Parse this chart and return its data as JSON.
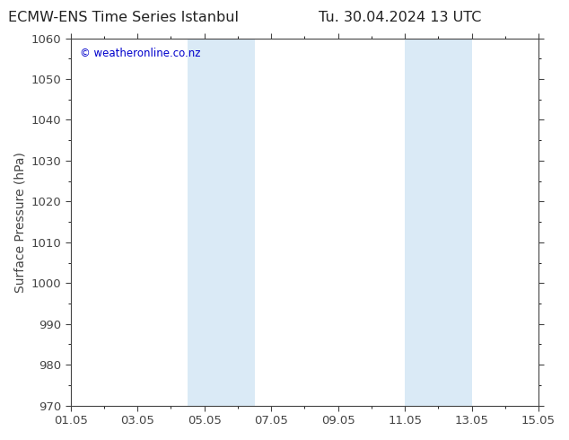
{
  "title_left": "ECMW-ENS Time Series Istanbul",
  "title_right": "Tu. 30.04.2024 13 UTC",
  "ylabel": "Surface Pressure (hPa)",
  "xlabel_ticks": [
    "01.05",
    "03.05",
    "05.05",
    "07.05",
    "09.05",
    "11.05",
    "13.05",
    "15.05"
  ],
  "xtick_positions": [
    0,
    2,
    4,
    6,
    8,
    10,
    12,
    14
  ],
  "xlim": [
    0,
    14
  ],
  "ylim": [
    970,
    1060
  ],
  "yticks": [
    970,
    980,
    990,
    1000,
    1010,
    1020,
    1030,
    1040,
    1050,
    1060
  ],
  "shaded_bands": [
    {
      "x_start": 3.5,
      "x_end": 5.5
    },
    {
      "x_start": 10.0,
      "x_end": 12.0
    }
  ],
  "shaded_color": "#daeaf6",
  "background_color": "#ffffff",
  "plot_bg_color": "#ffffff",
  "watermark_text": "© weatheronline.co.nz",
  "watermark_color": "#0000cc",
  "title_color": "#222222",
  "axis_color": "#444444",
  "tick_color": "#444444",
  "title_fontsize": 11.5,
  "ylabel_fontsize": 10,
  "tick_fontsize": 9.5,
  "watermark_fontsize": 8.5
}
